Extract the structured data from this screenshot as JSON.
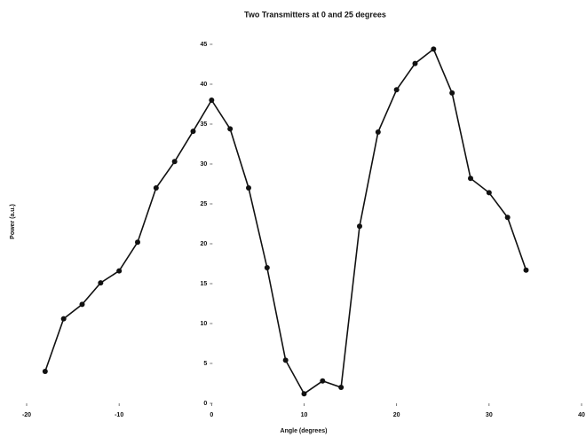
{
  "chart_data": {
    "type": "line",
    "title": "Two Transmitters at 0 and 25 degrees",
    "x_label": "Angle (degrees)",
    "y_label": "Power (a.u.)",
    "x": [
      -18,
      -16,
      -14,
      -12,
      -10,
      -8,
      -6,
      -4,
      -2,
      0,
      2,
      4,
      6,
      8,
      10,
      12,
      14,
      16,
      18,
      20,
      22,
      24,
      26,
      28,
      30,
      32,
      34
    ],
    "series": [
      {
        "name": "Power",
        "color": "#111111",
        "values": [
          4.0,
          10.6,
          12.4,
          15.1,
          16.6,
          20.2,
          27.0,
          30.3,
          34.1,
          38.0,
          34.4,
          27.0,
          17.0,
          5.4,
          1.2,
          2.8,
          2.0,
          22.2,
          34.0,
          39.3,
          42.6,
          44.4,
          38.9,
          28.2,
          26.4,
          23.3,
          16.7
        ]
      }
    ],
    "xlim": [
      -20,
      40
    ],
    "xticks": [
      -20,
      -10,
      0,
      10,
      20,
      30,
      40
    ],
    "ylim": [
      0,
      45
    ],
    "yticks": [
      0,
      5,
      10,
      15,
      20,
      25,
      30,
      35,
      40,
      45
    ]
  }
}
